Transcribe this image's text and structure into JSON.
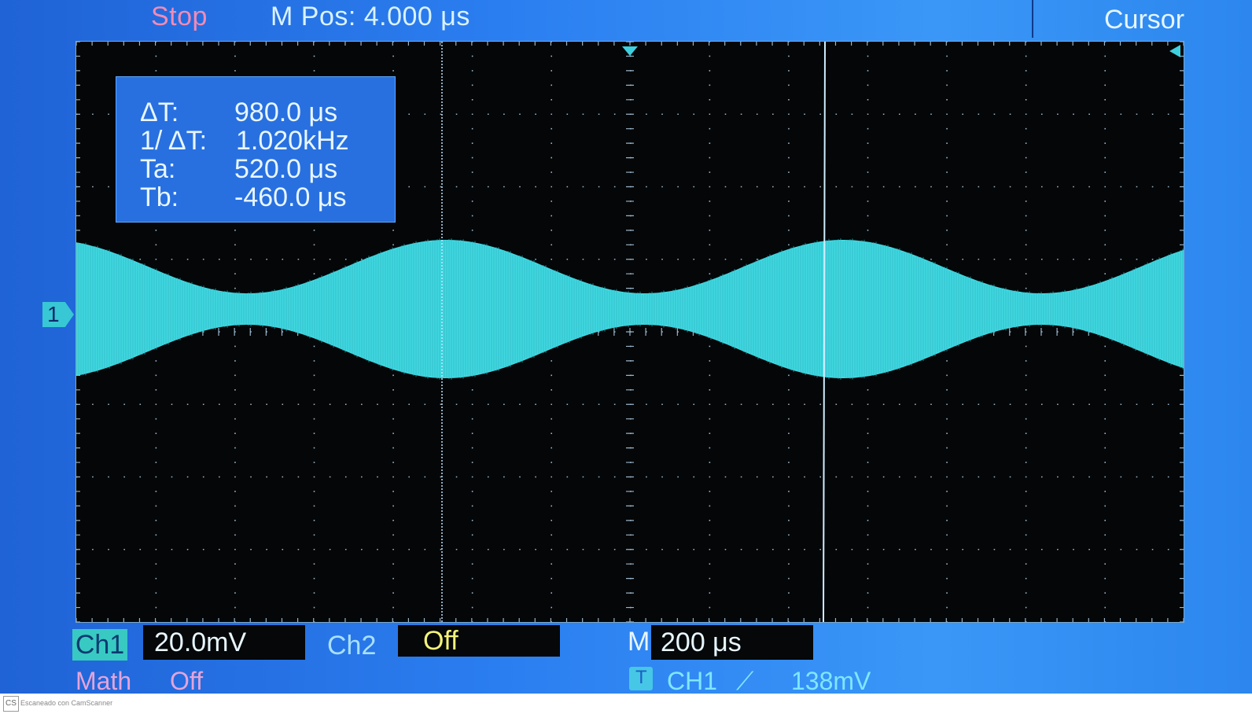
{
  "status": {
    "run_state": "Stop",
    "position_label": "M Pos: 4.000 μs"
  },
  "menu": {
    "title": "Cursor"
  },
  "cursor_readout": {
    "delta_t_label": "ΔT:",
    "delta_t_value": "980.0 μs",
    "inv_delta_t_label": "1/ ΔT:",
    "inv_delta_t_value": "1.020kHz",
    "ta_label": "Ta:",
    "ta_value": "520.0 μs",
    "tb_label": "Tb:",
    "tb_value": "-460.0 μs"
  },
  "channel_marker": "1",
  "channels": {
    "ch1_label": "Ch1",
    "ch1_scale": "20.0mV",
    "ch2_label": "Ch2",
    "ch2_state": "Off"
  },
  "timebase": {
    "prefix": "M",
    "value": "200 μs"
  },
  "math": {
    "label": "Math",
    "state": "Off"
  },
  "trigger": {
    "icon": "T",
    "source": "CH1",
    "slope": "⟋",
    "level": "138mV"
  },
  "watermark": {
    "logo": "CS",
    "text": "Escaneado con CamScanner"
  },
  "colors": {
    "trace": "#40d8e0",
    "grid_dot": "#9ab4c8",
    "screen_bg": "#040608",
    "bezel": "#2b7ef0"
  }
}
